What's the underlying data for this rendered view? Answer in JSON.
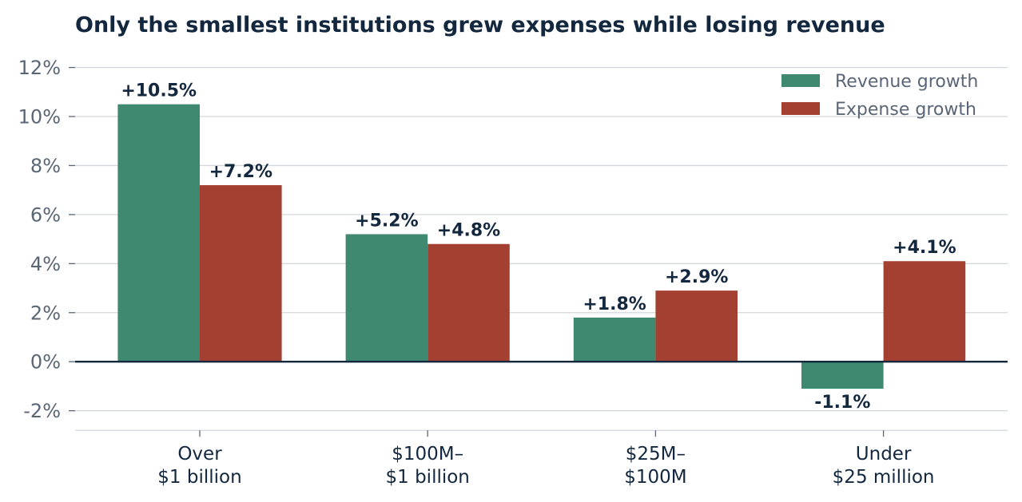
{
  "chart_data": {
    "type": "bar",
    "title": "Only the smallest institutions grew expenses while losing revenue",
    "categories": [
      [
        "Over",
        "$1 billion"
      ],
      [
        "$100M–",
        "$1 billion"
      ],
      [
        "$25M–",
        "$100M"
      ],
      [
        "Under",
        "$25 million"
      ]
    ],
    "series": [
      {
        "name": "Revenue growth",
        "color": "#3f8970",
        "values": [
          10.5,
          5.2,
          1.8,
          -1.1
        ],
        "labels": [
          "+10.5%",
          "+5.2%",
          "+1.8%",
          "-1.1%"
        ]
      },
      {
        "name": "Expense growth",
        "color": "#a34031",
        "values": [
          7.2,
          4.8,
          2.9,
          4.1
        ],
        "labels": [
          "+7.2%",
          "+4.8%",
          "+2.9%",
          "+4.1%"
        ]
      }
    ],
    "ylim": [
      -2.8,
      12.4
    ],
    "yticks": [
      -2,
      0,
      2,
      4,
      6,
      8,
      10,
      12
    ],
    "ytick_labels": [
      "-2%",
      "0%",
      "2%",
      "4%",
      "6%",
      "8%",
      "10%",
      "12%"
    ],
    "xlabel": "",
    "ylabel": "",
    "grid": "horizontal",
    "legend_position": "top-right",
    "zero_line_color": "#13283f"
  }
}
